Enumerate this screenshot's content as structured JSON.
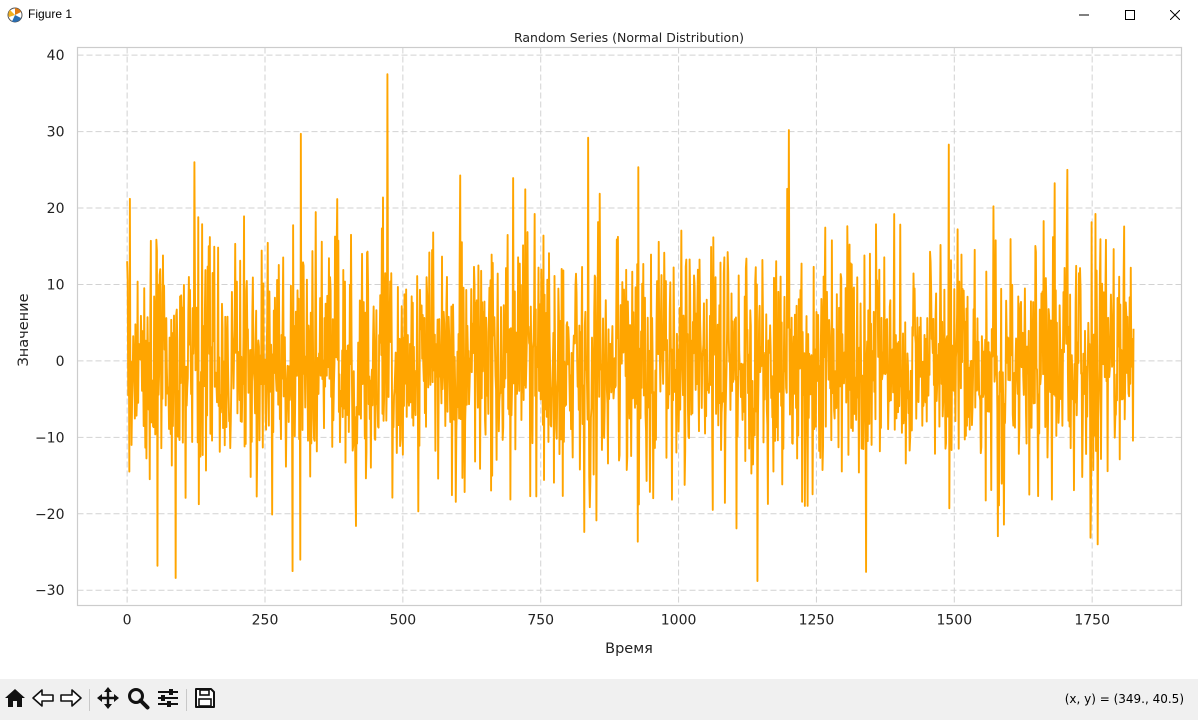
{
  "window": {
    "title": "Figure 1",
    "app_icon": "matplotlib-icon",
    "controls": [
      "minimize-icon",
      "maximize-icon",
      "close-icon"
    ]
  },
  "chart_data": {
    "type": "line",
    "title": "Random Series (Normal Distribution)",
    "xlabel": "Время",
    "ylabel": "Значение",
    "xlim": [
      -90,
      1912
    ],
    "ylim": [
      -32,
      41
    ],
    "xticks": [
      0,
      250,
      500,
      750,
      1000,
      1250,
      1500,
      1750
    ],
    "yticks": [
      -30,
      -20,
      -10,
      0,
      10,
      20,
      30,
      40
    ],
    "xtick_labels": [
      "0",
      "250",
      "500",
      "750",
      "1000",
      "1250",
      "1500",
      "1750"
    ],
    "ytick_labels": [
      "−30",
      "−20",
      "−10",
      "0",
      "10",
      "20",
      "30",
      "40"
    ],
    "grid": true,
    "grid_style": "dashed",
    "line_color": "#ffa500",
    "series": [
      {
        "n_points": 1826,
        "distribution": {
          "mean": 0,
          "std": 8
        },
        "x_range": [
          0,
          1825
        ],
        "notable_points": [
          {
            "x": 1,
            "y": 10.5
          },
          {
            "x": 5,
            "y": 21.2
          },
          {
            "x": 8,
            "y": -11.0
          },
          {
            "x": 55,
            "y": -26.8
          },
          {
            "x": 88,
            "y": -28.4
          },
          {
            "x": 300,
            "y": -27.5
          },
          {
            "x": 315,
            "y": 29.7
          },
          {
            "x": 472,
            "y": 37.5
          },
          {
            "x": 836,
            "y": 29.2
          },
          {
            "x": 1143,
            "y": -28.8
          },
          {
            "x": 1200,
            "y": 30.2
          },
          {
            "x": 1340,
            "y": -27.6
          },
          {
            "x": 1490,
            "y": 28.3
          },
          {
            "x": 1705,
            "y": 25.0
          },
          {
            "x": 1760,
            "y": -24.0
          },
          {
            "x": 1820,
            "y": 12.2
          },
          {
            "x": 1825,
            "y": 4.2
          }
        ]
      }
    ]
  },
  "toolbar": {
    "buttons": [
      {
        "name": "home-button",
        "icon": "home-icon"
      },
      {
        "name": "back-button",
        "icon": "back-arrow-icon"
      },
      {
        "name": "forward-button",
        "icon": "forward-arrow-icon"
      },
      {
        "name": "pan-button",
        "icon": "pan-icon"
      },
      {
        "name": "zoom-button",
        "icon": "zoom-icon"
      },
      {
        "name": "configure-subplots-button",
        "icon": "sliders-icon"
      },
      {
        "name": "save-button",
        "icon": "save-icon"
      }
    ],
    "coords_text": "(x, y) = (349., 40.5)"
  }
}
